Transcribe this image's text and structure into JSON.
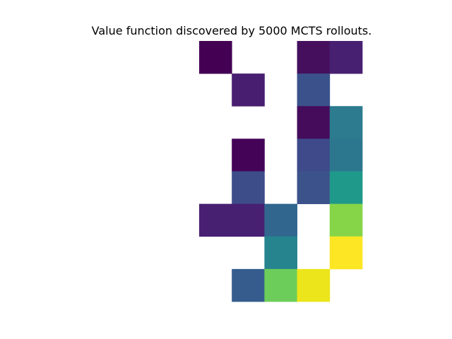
{
  "chart_data": {
    "type": "heatmap",
    "title": "Value function discovered by 5000 MCTS rollouts.",
    "rows": 8,
    "cols": 5,
    "axes_visible": false,
    "grid": false,
    "colormap": "viridis",
    "cells": [
      {
        "row": 0,
        "col": 0,
        "color": "#440154"
      },
      {
        "row": 0,
        "col": 3,
        "color": "#450f5e"
      },
      {
        "row": 0,
        "col": 4,
        "color": "#482071"
      },
      {
        "row": 1,
        "col": 1,
        "color": "#481f70"
      },
      {
        "row": 1,
        "col": 3,
        "color": "#3b518b"
      },
      {
        "row": 2,
        "col": 3,
        "color": "#450c5c"
      },
      {
        "row": 2,
        "col": 4,
        "color": "#2c7b8e"
      },
      {
        "row": 3,
        "col": 1,
        "color": "#450357"
      },
      {
        "row": 3,
        "col": 3,
        "color": "#3e4a89"
      },
      {
        "row": 3,
        "col": 4,
        "color": "#2c778e"
      },
      {
        "row": 4,
        "col": 1,
        "color": "#3d4d8a"
      },
      {
        "row": 4,
        "col": 3,
        "color": "#3c528b"
      },
      {
        "row": 4,
        "col": 4,
        "color": "#1f998a"
      },
      {
        "row": 5,
        "col": 0,
        "color": "#482071"
      },
      {
        "row": 5,
        "col": 1,
        "color": "#482071"
      },
      {
        "row": 5,
        "col": 2,
        "color": "#31668e"
      },
      {
        "row": 5,
        "col": 4,
        "color": "#86d549"
      },
      {
        "row": 6,
        "col": 2,
        "color": "#25848e"
      },
      {
        "row": 6,
        "col": 4,
        "color": "#fde725"
      },
      {
        "row": 7,
        "col": 1,
        "color": "#365c8d"
      },
      {
        "row": 7,
        "col": 2,
        "color": "#6ccd5a"
      },
      {
        "row": 7,
        "col": 3,
        "color": "#ece51b"
      }
    ]
  }
}
